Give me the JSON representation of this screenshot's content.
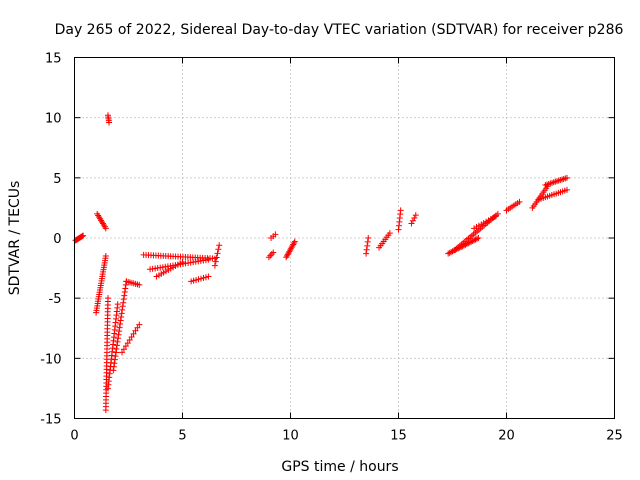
{
  "chart_data": {
    "type": "scatter",
    "title": "Day 265 of 2022, Sidereal Day-to-day VTEC variation (SDTVAR) for receiver p286",
    "xlabel": "GPS time / hours",
    "ylabel": "SDTVAR / TECUs",
    "xlim": [
      0,
      25
    ],
    "ylim": [
      -15,
      15
    ],
    "xticks": [
      "0",
      "5",
      "10",
      "15",
      "20",
      "25"
    ],
    "yticks": [
      "15",
      "10",
      "5",
      "0",
      "-5",
      "-10",
      "-15"
    ],
    "grid": true,
    "marker": "plus",
    "color": "#ff0000",
    "segments": [
      {
        "x0": 0.05,
        "x1": 0.4,
        "y0": -0.2,
        "y1": 0.2,
        "n": 12
      },
      {
        "x0": 1.05,
        "x1": 1.45,
        "y0": 2.0,
        "y1": 0.8,
        "n": 10
      },
      {
        "x0": 1.55,
        "x1": 1.6,
        "y0": 10.2,
        "y1": 9.6,
        "n": 5
      },
      {
        "x0": 1.0,
        "x1": 1.45,
        "y0": -6.2,
        "y1": -1.5,
        "n": 26
      },
      {
        "x0": 1.45,
        "x1": 1.55,
        "y0": -14.3,
        "y1": -5.0,
        "n": 34
      },
      {
        "x0": 1.55,
        "x1": 2.0,
        "y0": -12.5,
        "y1": -5.5,
        "n": 24
      },
      {
        "x0": 1.8,
        "x1": 2.4,
        "y0": -11.0,
        "y1": -3.6,
        "n": 26
      },
      {
        "x0": 2.4,
        "x1": 3.0,
        "y0": -3.6,
        "y1": -3.9,
        "n": 8
      },
      {
        "x0": 2.2,
        "x1": 3.0,
        "y0": -9.5,
        "y1": -7.2,
        "n": 10
      },
      {
        "x0": 3.2,
        "x1": 6.5,
        "y0": -1.4,
        "y1": -1.7,
        "n": 30
      },
      {
        "x0": 3.5,
        "x1": 6.2,
        "y0": -2.6,
        "y1": -1.8,
        "n": 24
      },
      {
        "x0": 3.8,
        "x1": 5.0,
        "y0": -3.2,
        "y1": -2.0,
        "n": 12
      },
      {
        "x0": 5.4,
        "x1": 6.2,
        "y0": -3.6,
        "y1": -3.2,
        "n": 8
      },
      {
        "x0": 6.5,
        "x1": 6.7,
        "y0": -2.3,
        "y1": -0.6,
        "n": 6
      },
      {
        "x0": 9.0,
        "x1": 9.2,
        "y0": -1.6,
        "y1": -1.2,
        "n": 4
      },
      {
        "x0": 9.1,
        "x1": 9.3,
        "y0": 0.0,
        "y1": 0.3,
        "n": 3
      },
      {
        "x0": 9.8,
        "x1": 10.2,
        "y0": -1.6,
        "y1": -0.3,
        "n": 12
      },
      {
        "x0": 13.5,
        "x1": 13.6,
        "y0": -1.3,
        "y1": 0.0,
        "n": 5
      },
      {
        "x0": 14.1,
        "x1": 14.6,
        "y0": -0.8,
        "y1": 0.4,
        "n": 8
      },
      {
        "x0": 15.0,
        "x1": 15.1,
        "y0": 0.7,
        "y1": 2.3,
        "n": 6
      },
      {
        "x0": 15.6,
        "x1": 15.8,
        "y0": 1.2,
        "y1": 1.9,
        "n": 4
      },
      {
        "x0": 17.3,
        "x1": 18.7,
        "y0": -1.3,
        "y1": 0.0,
        "n": 22
      },
      {
        "x0": 17.6,
        "x1": 19.6,
        "y0": -1.0,
        "y1": 2.0,
        "n": 26
      },
      {
        "x0": 18.5,
        "x1": 19.5,
        "y0": 0.8,
        "y1": 1.8,
        "n": 10
      },
      {
        "x0": 20.0,
        "x1": 20.6,
        "y0": 2.3,
        "y1": 3.0,
        "n": 8
      },
      {
        "x0": 21.2,
        "x1": 21.9,
        "y0": 2.5,
        "y1": 4.3,
        "n": 12
      },
      {
        "x0": 21.5,
        "x1": 22.8,
        "y0": 3.2,
        "y1": 4.0,
        "n": 14
      },
      {
        "x0": 21.8,
        "x1": 22.8,
        "y0": 4.4,
        "y1": 5.0,
        "n": 14
      }
    ]
  }
}
